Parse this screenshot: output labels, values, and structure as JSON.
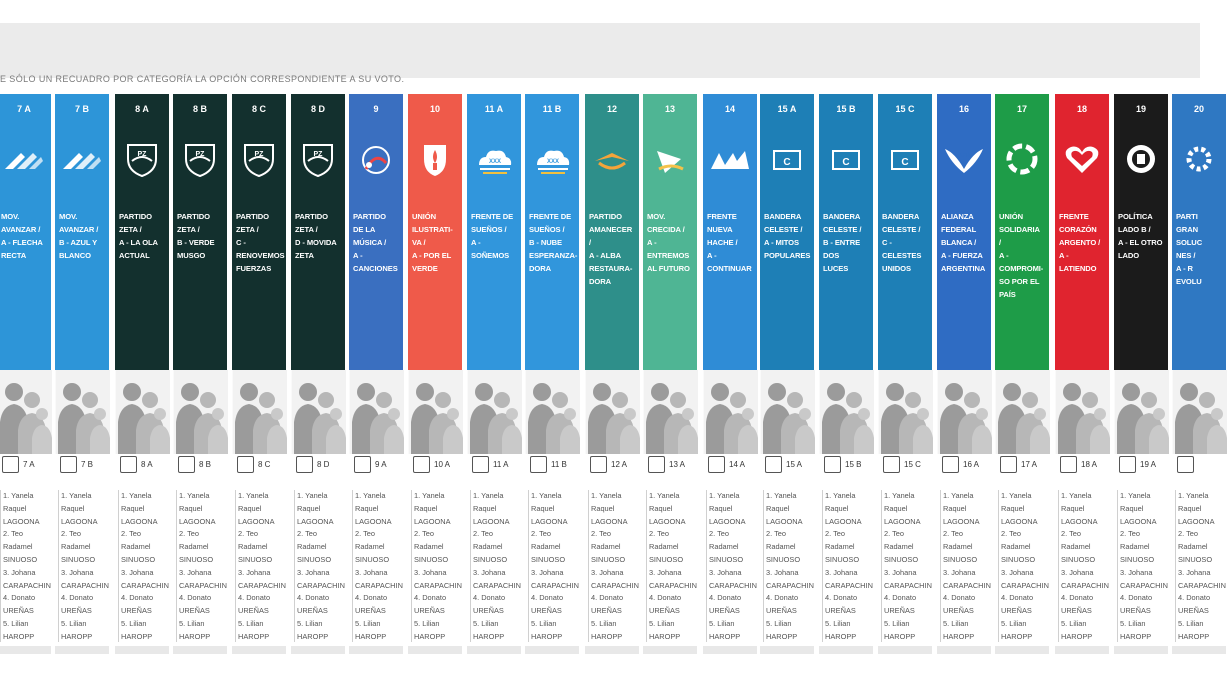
{
  "header": {
    "instruction": "E SÓLO UN RECUADRO POR CATEGORÍA LA OPCIÓN CORRESPONDIENTE A SU VOTO."
  },
  "candidates_text": "1. Yanela\nRaquel\nLAGOONA\n2. Teo\nRadamel\nSINUOSO\n3. Johana\nCARAPACHIN\n4. Donato\nUREÑAS\n5. Lilian\nHAROPP",
  "lists": [
    {
      "number": "7 A",
      "party": "MOV.\nAVANZAR /\nA - Flecha\nrecta",
      "code": "7 A",
      "color": "#2d95d8",
      "logo_icon": "arrow-logo-icon"
    },
    {
      "number": "7 B",
      "party": "MOV.\nAVANZAR /\nB - Azul y\nblanco",
      "code": "7 B",
      "color": "#2d95d8",
      "logo_icon": "arrow-logo-icon"
    },
    {
      "number": "8 A",
      "party": "PARTIDO\nZETA /\nA - La ola\nActual",
      "code": "8 A",
      "color": "#13302e",
      "logo_icon": "shield-logo-icon"
    },
    {
      "number": "8 B",
      "party": "PARTIDO\nZETA /\nB - Verde\nmusgo",
      "code": "8 B",
      "color": "#13302e",
      "logo_icon": "shield-logo-icon"
    },
    {
      "number": "8 C",
      "party": "PARTIDO\nZETA /\nC -\nRenovemos\nFuerzas",
      "code": "8 C",
      "color": "#13302e",
      "logo_icon": "shield-logo-icon"
    },
    {
      "number": "8 D",
      "party": "PARTIDO\nZETA /\nD - Movida\nZeta",
      "code": "8 D",
      "color": "#13302e",
      "logo_icon": "shield-logo-icon"
    },
    {
      "number": "9",
      "party": "PARTIDO\nDE LA\nMÚSICA /\nA -\nCanciones",
      "code": "9 A",
      "color": "#3a6fc0",
      "logo_icon": "music-logo-icon"
    },
    {
      "number": "10",
      "party": "UNIÓN\nILUSTRATI-\nVA /\nA - Por el\nverde",
      "code": "10 A",
      "color": "#ef5a4a",
      "logo_icon": "torch-logo-icon"
    },
    {
      "number": "11 A",
      "party": "FRENTE DE\nSUEÑOS /\nA -\nSoñemos",
      "code": "11 A",
      "color": "#3196dc",
      "logo_icon": "cloud-logo-icon"
    },
    {
      "number": "11 B",
      "party": "FRENTE DE\nSUEÑOS /\nB - Nube\nEsperanza-\ndora",
      "code": "11 B",
      "color": "#3196dc",
      "logo_icon": "cloud-logo-icon"
    },
    {
      "number": "12",
      "party": "PARTIDO\nAMANECER\n/\nA - Alba\nRestaura-\ndora",
      "code": "12 A",
      "color": "#2e8f8a",
      "logo_icon": "sunrise-logo-icon"
    },
    {
      "number": "13",
      "party": "MOV.\nCRECIDA /\nA -\nEntremos\nal Futuro",
      "code": "13 A",
      "color": "#4fb594",
      "logo_icon": "wave-logo-icon"
    },
    {
      "number": "14",
      "party": "FRENTE\nNUEVA\nHACHE /\nA -\nContinuar",
      "code": "14 A",
      "color": "#2f8cd6",
      "logo_icon": "n-logo-icon"
    },
    {
      "number": "15 A",
      "party": "BANDERA\nCELESTE /\nA - Mitos\nPopulares",
      "code": "15 A",
      "color": "#1e7fb6",
      "logo_icon": "flag-logo-icon"
    },
    {
      "number": "15 B",
      "party": "BANDERA\nCELESTE /\nB - Entre\ndos\nLuces",
      "code": "15 B",
      "color": "#1e7fb6",
      "logo_icon": "flag-logo-icon"
    },
    {
      "number": "15 C",
      "party": "BANDERA\nCELESTE /\nC -\nCelestes\nUnidos",
      "code": "15 C",
      "color": "#1e7fb6",
      "logo_icon": "flag-logo-icon"
    },
    {
      "number": "16",
      "party": "ALIANZA\nFEDERAL\nBLANCA /\nA - Fuerza\nArgentina",
      "code": "16 A",
      "color": "#2f6cc3",
      "logo_icon": "wings-logo-icon"
    },
    {
      "number": "17",
      "party": "UNIÓN\nSOLIDARIA\n/\nA -\nCompromi-\nso por el\npaís",
      "code": "17 A",
      "color": "#1e9c48",
      "logo_icon": "ring-logo-icon"
    },
    {
      "number": "18",
      "party": "FRENTE\nCORAZÓN\nARGENTO /\nA -\nLatiendo",
      "code": "18 A",
      "color": "#e0242f",
      "logo_icon": "heart-logo-icon"
    },
    {
      "number": "19",
      "party": "POLÍTICA\nLADO B /\nA - El otro\nlado",
      "code": "19 A",
      "color": "#1b1b1b",
      "logo_icon": "target-logo-icon"
    },
    {
      "number": "20",
      "party": "PARTI\nGRAN\nSOLUC\nNES /\nA - R\nevolu",
      "code": "",
      "color": "#2f78c2",
      "logo_icon": "gear-logo-icon"
    }
  ]
}
